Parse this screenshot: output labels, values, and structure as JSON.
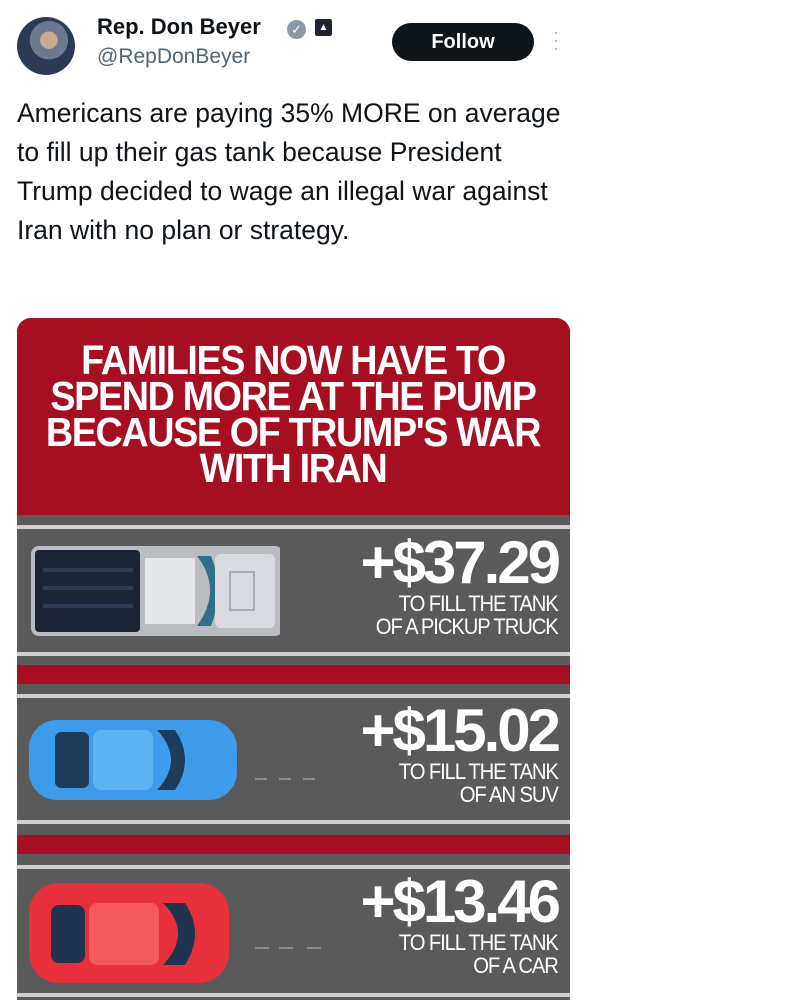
{
  "author": {
    "name": "Rep. Don Beyer",
    "handle": "@RepDonBeyer",
    "verified_icon": "verified-badge-icon",
    "affiliation_icon": "government-capitol-icon"
  },
  "actions": {
    "follow_label": "Follow",
    "more_icon": "more-vertical-icon"
  },
  "tweet": {
    "text": "Americans are paying 35% MORE on average to fill up their gas tank because President Trump decided to wage an illegal war against Iran with no plan or strategy."
  },
  "infographic": {
    "headline": "FAMILIES NOW HAVE TO SPEND MORE AT THE PUMP BECAUSE OF TRUMP'S WAR WITH IRAN",
    "colors": {
      "red": "#a50f1f",
      "road": "#5a5a5a"
    },
    "items": [
      {
        "amount": "+$37.29",
        "caption_line1": "TO FILL THE TANK",
        "caption_line2": "OF A PICKUP TRUCK",
        "vehicle": "pickup-truck",
        "color": "#d0d3d8"
      },
      {
        "amount": "+$15.02",
        "caption_line1": "TO FILL THE TANK",
        "caption_line2": "OF AN SUV",
        "vehicle": "suv",
        "color": "#3d9be9"
      },
      {
        "amount": "+$13.46",
        "caption_line1": "TO FILL THE TANK",
        "caption_line2": "OF A CAR",
        "vehicle": "car",
        "color": "#e8303c"
      }
    ]
  }
}
